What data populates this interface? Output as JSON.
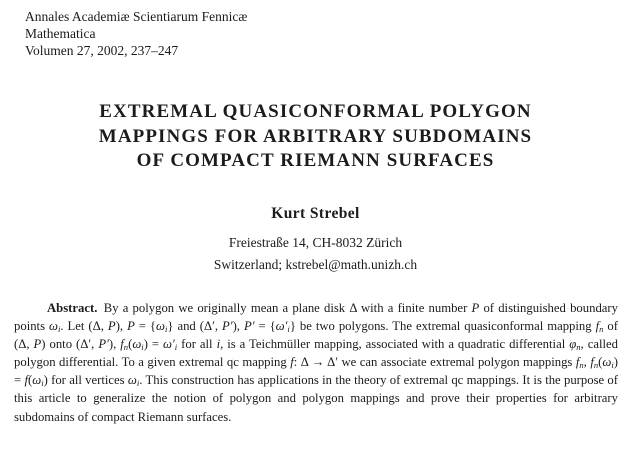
{
  "page": {
    "background_color": "#ffffff",
    "text_color": "#1b1b1b"
  },
  "journal_header": {
    "line1": "Annales Academiæ Scientiarum Fennicæ",
    "line2": "Mathematica",
    "line3": "Volumen 27, 2002, 237–247"
  },
  "title": {
    "line1": "EXTREMAL QUASICONFORMAL POLYGON",
    "line2": "MAPPINGS FOR ARBITRARY SUBDOMAINS",
    "line3": "OF COMPACT RIEMANN SURFACES"
  },
  "author": {
    "name": "Kurt Strebel",
    "address_line1": "Freiestraße 14, CH-8032 Zürich",
    "address_line2": "Switzerland; kstrebel@math.unizh.ch"
  },
  "abstract": {
    "segments": [
      {
        "t": "Abstract.",
        "b": 1
      },
      {
        "t": " By a polygon we originally mean a plane disk Δ with a finite number "
      },
      {
        "t": "P",
        "i": 1
      },
      {
        "t": " of distinguished boundary points "
      },
      {
        "t": "ω",
        "i": 1
      },
      {
        "t": "i",
        "sub": 1,
        "i": 1
      },
      {
        "t": ". Let (Δ, "
      },
      {
        "t": "P",
        "i": 1
      },
      {
        "t": "), "
      },
      {
        "t": "P",
        "i": 1
      },
      {
        "t": " = {"
      },
      {
        "t": "ω",
        "i": 1
      },
      {
        "t": "i",
        "sub": 1,
        "i": 1
      },
      {
        "t": "} and (Δ′, "
      },
      {
        "t": "P′",
        "i": 1
      },
      {
        "t": "), "
      },
      {
        "t": "P′",
        "i": 1
      },
      {
        "t": " = {"
      },
      {
        "t": "ω′",
        "i": 1
      },
      {
        "t": "i",
        "sub": 1,
        "i": 1
      },
      {
        "t": "} be two polygons. The extremal quasiconformal mapping "
      },
      {
        "t": "f",
        "i": 1
      },
      {
        "t": "n",
        "sub": 1,
        "i": 1
      },
      {
        "t": " of (Δ, "
      },
      {
        "t": "P",
        "i": 1
      },
      {
        "t": ") onto (Δ′, "
      },
      {
        "t": "P′",
        "i": 1
      },
      {
        "t": "), "
      },
      {
        "t": "f",
        "i": 1
      },
      {
        "t": "n",
        "sub": 1,
        "i": 1
      },
      {
        "t": "("
      },
      {
        "t": "ω",
        "i": 1
      },
      {
        "t": "i",
        "sub": 1,
        "i": 1
      },
      {
        "t": ") = "
      },
      {
        "t": "ω′",
        "i": 1
      },
      {
        "t": "i",
        "sub": 1,
        "i": 1
      },
      {
        "t": " for all "
      },
      {
        "t": "i",
        "i": 1
      },
      {
        "t": ", is a Teichmüller mapping, associated with a quadratic differential "
      },
      {
        "t": "φ",
        "i": 1
      },
      {
        "t": "n",
        "sub": 1,
        "i": 1
      },
      {
        "t": ", called polygon differential. To a given extremal qc mapping "
      },
      {
        "t": "f",
        "i": 1
      },
      {
        "t": ": Δ → Δ′ we can associate extremal polygon mappings "
      },
      {
        "t": "f",
        "i": 1
      },
      {
        "t": "n",
        "sub": 1,
        "i": 1
      },
      {
        "t": ", "
      },
      {
        "t": "f",
        "i": 1
      },
      {
        "t": "n",
        "sub": 1,
        "i": 1
      },
      {
        "t": "("
      },
      {
        "t": "ω",
        "i": 1
      },
      {
        "t": "i",
        "sub": 1,
        "i": 1
      },
      {
        "t": ") = "
      },
      {
        "t": "f",
        "i": 1
      },
      {
        "t": "("
      },
      {
        "t": "ω",
        "i": 1
      },
      {
        "t": "i",
        "sub": 1,
        "i": 1
      },
      {
        "t": ") for all vertices "
      },
      {
        "t": "ω",
        "i": 1
      },
      {
        "t": "i",
        "sub": 1,
        "i": 1
      },
      {
        "t": ". This construction has applications in the theory of extremal qc mappings. It is the purpose of this article to generalize the notion of polygon and polygon mappings and prove their properties for arbitrary subdomains of compact Riemann surfaces."
      }
    ]
  }
}
